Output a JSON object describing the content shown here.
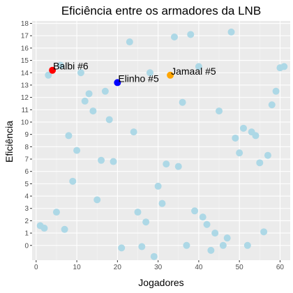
{
  "chart_data": {
    "type": "scatter",
    "title": "Eficiência entre os armadores da LNB",
    "xlabel": "Jogadores",
    "ylabel": "Eficiência",
    "xlim": [
      -1,
      62.5
    ],
    "ylim": [
      -1.2,
      18.2
    ],
    "x_ticks": [
      0,
      10,
      20,
      30,
      40,
      50,
      60
    ],
    "y_ticks": [
      0,
      1,
      2,
      3,
      4,
      5,
      6,
      7,
      8,
      9,
      10,
      11,
      12,
      13,
      14,
      15,
      16,
      17,
      18
    ],
    "grid": true,
    "colors": {
      "panel_background": "#ebebeb",
      "grid_major": "#ffffff",
      "grid_minor": "#f5f5f5",
      "default_point": "#add8e6"
    },
    "series": [
      {
        "points": [
          {
            "x": 1,
            "y": 1.6
          },
          {
            "x": 2,
            "y": 1.4
          },
          {
            "x": 3,
            "y": 13.8
          },
          {
            "x": 5,
            "y": 2.7
          },
          {
            "x": 6,
            "y": 14.6
          },
          {
            "x": 7,
            "y": 1.3
          },
          {
            "x": 8,
            "y": 8.9
          },
          {
            "x": 9,
            "y": 5.2
          },
          {
            "x": 10,
            "y": 7.7
          },
          {
            "x": 11,
            "y": 14.0
          },
          {
            "x": 12,
            "y": 11.7
          },
          {
            "x": 13,
            "y": 12.3
          },
          {
            "x": 14,
            "y": 10.9
          },
          {
            "x": 15,
            "y": 3.7
          },
          {
            "x": 16,
            "y": 6.9
          },
          {
            "x": 17,
            "y": 12.5
          },
          {
            "x": 18,
            "y": 10.2
          },
          {
            "x": 19,
            "y": 6.8
          },
          {
            "x": 21,
            "y": -0.2
          },
          {
            "x": 23,
            "y": 16.5
          },
          {
            "x": 24,
            "y": 9.2
          },
          {
            "x": 25,
            "y": 2.7
          },
          {
            "x": 26,
            "y": -0.1
          },
          {
            "x": 27,
            "y": 1.9
          },
          {
            "x": 28,
            "y": 14.0
          },
          {
            "x": 29,
            "y": -0.9
          },
          {
            "x": 30,
            "y": 4.8
          },
          {
            "x": 31,
            "y": 3.4
          },
          {
            "x": 32,
            "y": 6.6
          },
          {
            "x": 34,
            "y": 16.9
          },
          {
            "x": 35,
            "y": 6.4
          },
          {
            "x": 36,
            "y": 11.6
          },
          {
            "x": 37,
            "y": 0
          },
          {
            "x": 38,
            "y": 17.1
          },
          {
            "x": 39,
            "y": 2.8
          },
          {
            "x": 40,
            "y": 14.5
          },
          {
            "x": 41,
            "y": 2.3
          },
          {
            "x": 42,
            "y": 1.7
          },
          {
            "x": 43,
            "y": -0.4
          },
          {
            "x": 44,
            "y": 1.0
          },
          {
            "x": 45,
            "y": 10.9
          },
          {
            "x": 46,
            "y": 0
          },
          {
            "x": 47,
            "y": 0.6
          },
          {
            "x": 48,
            "y": 17.3
          },
          {
            "x": 49,
            "y": 8.7
          },
          {
            "x": 50,
            "y": 7.5
          },
          {
            "x": 51,
            "y": 9.5
          },
          {
            "x": 52,
            "y": 0
          },
          {
            "x": 53,
            "y": 9.2
          },
          {
            "x": 54,
            "y": 8.9
          },
          {
            "x": 55,
            "y": 6.7
          },
          {
            "x": 56,
            "y": 1.1
          },
          {
            "x": 57,
            "y": 7.3
          },
          {
            "x": 58,
            "y": 11.4
          },
          {
            "x": 59,
            "y": 12.5
          },
          {
            "x": 60,
            "y": 14.4
          },
          {
            "x": 61,
            "y": 14.5
          }
        ],
        "color": "#add8e6"
      },
      {
        "points": [
          {
            "x": 4,
            "y": 14.2,
            "label": "Balbi #6"
          }
        ],
        "color": "#ff0000"
      },
      {
        "points": [
          {
            "x": 20,
            "y": 13.2,
            "label": "Elinho #5"
          }
        ],
        "color": "#0000ff"
      },
      {
        "points": [
          {
            "x": 33,
            "y": 13.8,
            "label": "Jamaal #5"
          }
        ],
        "color": "#ffa500"
      }
    ]
  }
}
